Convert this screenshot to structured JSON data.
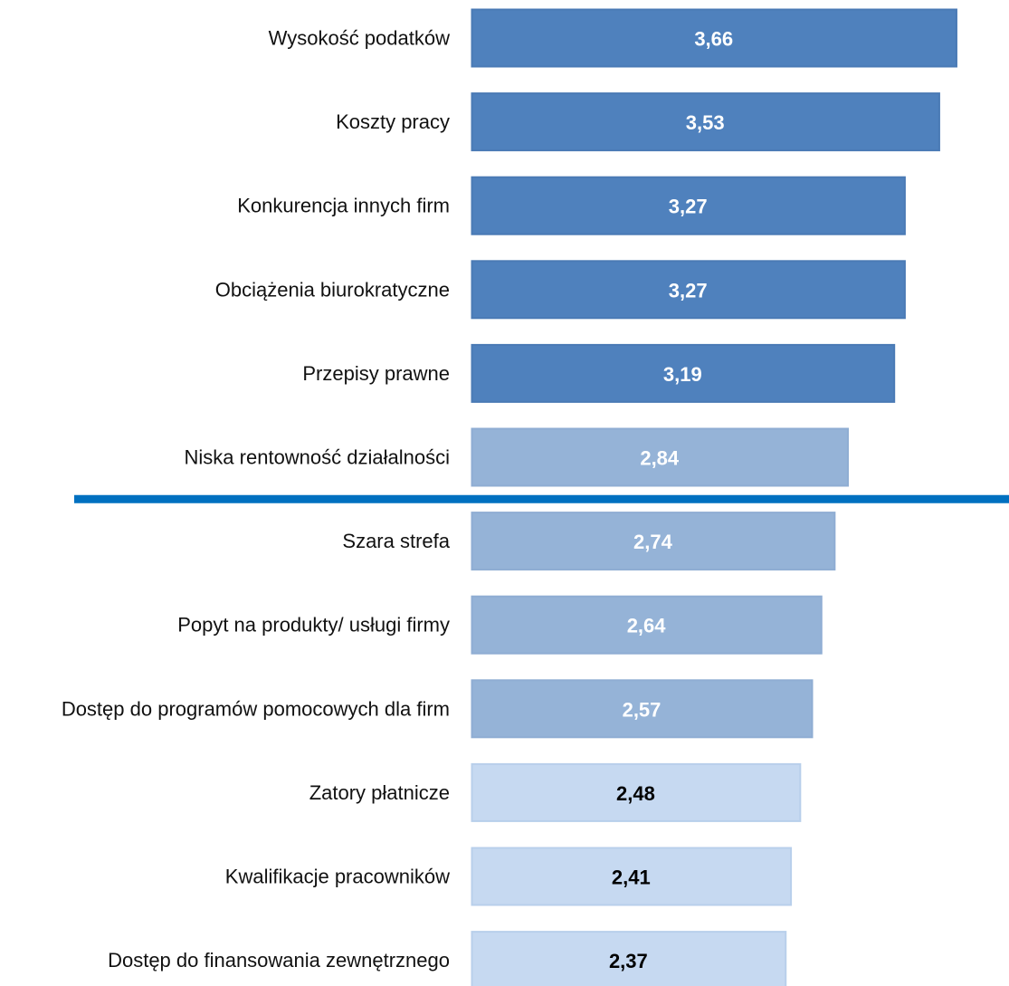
{
  "chart_data": {
    "type": "bar",
    "orientation": "horizontal",
    "title": "",
    "xlabel": "",
    "ylabel": "",
    "grid": false,
    "legend": "none",
    "categories": [
      "Wysokość podatków",
      "Koszty pracy",
      "Konkurencja innych firm",
      "Obciążenia biurokratyczne",
      "Przepisy prawne",
      "Niska rentowność działalności",
      "Szara strefa",
      "Popyt na produkty/ usługi firmy",
      "Dostęp do programów pomocowych dla firm",
      "Zatory płatnicze",
      "Kwalifikacje pracowników",
      "Dostęp do finansowania zewnętrznego"
    ],
    "values": [
      3.66,
      3.53,
      3.27,
      3.27,
      3.19,
      2.84,
      2.74,
      2.64,
      2.57,
      2.48,
      2.41,
      2.37
    ],
    "value_labels": [
      "3,66",
      "3,53",
      "3,27",
      "3,27",
      "3,19",
      "2,84",
      "2,74",
      "2,64",
      "2,57",
      "2,48",
      "2,41",
      "2,37"
    ],
    "groups": [
      0,
      0,
      0,
      0,
      0,
      1,
      1,
      1,
      1,
      2,
      2,
      2
    ],
    "group_colors": [
      "#4f81bd",
      "#95b3d7",
      "#c6d9f1"
    ],
    "group_border_colors": [
      "#4a7ab5",
      "#8fadd3",
      "#b8cfeb"
    ],
    "group_text_colors": [
      "#ffffff",
      "#ffffff",
      "#000000"
    ],
    "threshold_line_color": "#0070c0",
    "threshold_after_index": 5
  }
}
